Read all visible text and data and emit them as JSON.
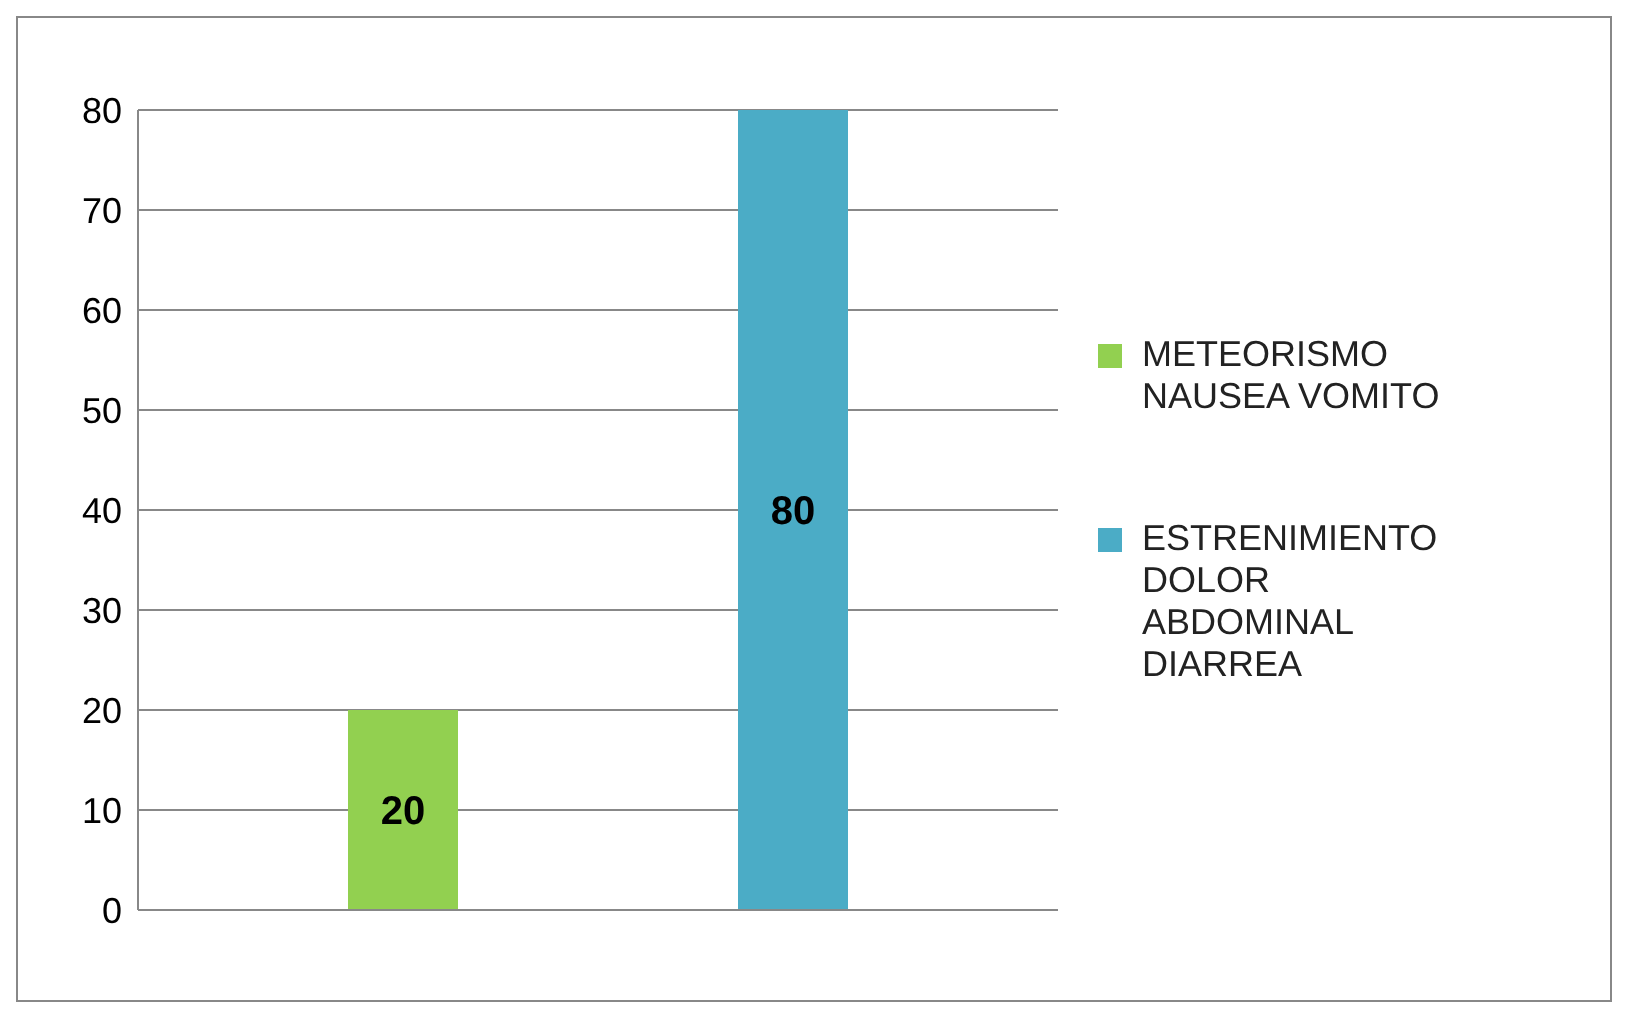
{
  "chart_data": {
    "type": "bar",
    "categories": [
      null
    ],
    "series": [
      {
        "name": "METEORISMO NAUSEA VOMITO",
        "color": "#92d050",
        "values": [
          20
        ]
      },
      {
        "name": "ESTRENIMIENTO DOLOR ABDOMINAL DIARREA",
        "color": "#4bacc6",
        "values": [
          80
        ]
      }
    ],
    "ylim": [
      0,
      80
    ],
    "yticks": [
      0,
      10,
      20,
      30,
      40,
      50,
      60,
      70,
      80
    ],
    "grid": "y",
    "legend": "right",
    "data_labels": true
  }
}
